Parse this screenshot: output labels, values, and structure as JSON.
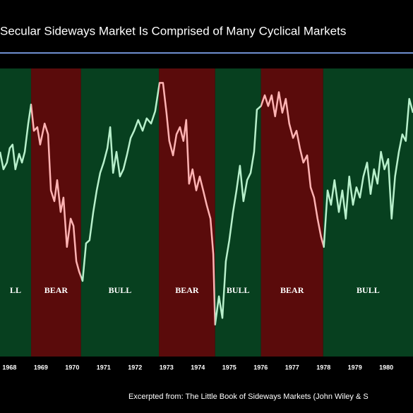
{
  "chart_data": {
    "type": "line",
    "title": "Secular Sideways Market Is Comprised of Many Cyclical Markets",
    "source": "Excerpted from: The Little Book of Sideways Markets (John Wiley & S",
    "x": [
      1967.7,
      1967.81,
      1967.92,
      1968.01,
      1968.1,
      1968.19,
      1968.31,
      1968.4,
      1968.49,
      1968.6,
      1968.69,
      1968.78,
      1968.89,
      1968.98,
      1969.12,
      1969.23,
      1969.32,
      1969.43,
      1969.52,
      1969.63,
      1969.72,
      1969.83,
      1969.95,
      1970.04,
      1970.13,
      1970.22,
      1970.33,
      1970.44,
      1970.55,
      1970.67,
      1970.78,
      1970.89,
      1971.0,
      1971.12,
      1971.21,
      1971.3,
      1971.41,
      1971.52,
      1971.63,
      1971.74,
      1971.86,
      1971.97,
      1972.1,
      1972.24,
      1972.37,
      1972.51,
      1972.64,
      1972.78,
      1972.89,
      1973.0,
      1973.09,
      1973.21,
      1973.32,
      1973.43,
      1973.54,
      1973.63,
      1973.72,
      1973.83,
      1973.95,
      1974.06,
      1974.17,
      1974.28,
      1974.4,
      1974.49,
      1974.55,
      1974.67,
      1974.78,
      1974.89,
      1975.0,
      1975.12,
      1975.23,
      1975.34,
      1975.45,
      1975.57,
      1975.68,
      1975.79,
      1975.88,
      1976.01,
      1976.13,
      1976.24,
      1976.35,
      1976.46,
      1976.58,
      1976.69,
      1976.8,
      1976.91,
      1977.03,
      1977.14,
      1977.25,
      1977.36,
      1977.48,
      1977.59,
      1977.7,
      1977.81,
      1977.92,
      1978.01,
      1978.13,
      1978.24,
      1978.35,
      1978.49,
      1978.6,
      1978.71,
      1978.82,
      1978.94,
      1979.05,
      1979.16,
      1979.27,
      1979.39,
      1979.5,
      1979.61,
      1979.72,
      1979.83,
      1979.94,
      1980.06,
      1980.17,
      1980.28,
      1980.4,
      1980.51,
      1980.62,
      1980.73,
      1980.85
    ],
    "values": [
      918,
      884,
      897,
      925,
      932,
      884,
      914,
      897,
      918,
      973,
      1010,
      959,
      966,
      932,
      973,
      952,
      843,
      822,
      863,
      801,
      829,
      733,
      788,
      774,
      705,
      685,
      667,
      740,
      746,
      801,
      843,
      877,
      897,
      925,
      966,
      877,
      918,
      870,
      884,
      911,
      945,
      959,
      980,
      959,
      983,
      973,
      997,
      1052,
      1052,
      994,
      939,
      911,
      952,
      966,
      939,
      980,
      856,
      884,
      843,
      870,
      843,
      815,
      788,
      719,
      582,
      637,
      595,
      705,
      746,
      801,
      843,
      891,
      822,
      863,
      877,
      918,
      1000,
      1007,
      1028,
      1007,
      1028,
      987,
      1034,
      994,
      1021,
      973,
      945,
      959,
      925,
      897,
      911,
      849,
      829,
      788,
      753,
      733,
      843,
      815,
      863,
      801,
      843,
      788,
      870,
      815,
      849,
      829,
      870,
      897,
      836,
      884,
      856,
      918,
      884,
      904,
      788,
      870,
      918,
      952,
      939,
      1021,
      994
    ],
    "regimes": [
      {
        "label": "LL",
        "start": 1967.7,
        "end": 1968.69,
        "color": "#07401f",
        "line_color": "#b8f0cc"
      },
      {
        "label": "BEAR",
        "start": 1968.69,
        "end": 1970.28,
        "color": "#5a0b0b",
        "line_color": "#ffb3b3"
      },
      {
        "label": "BULL",
        "start": 1970.28,
        "end": 1972.76,
        "color": "#07401f",
        "line_color": "#b8f0cc"
      },
      {
        "label": "BEAR",
        "start": 1972.76,
        "end": 1974.55,
        "color": "#5a0b0b",
        "line_color": "#ffb3b3"
      },
      {
        "label": "BULL",
        "start": 1974.55,
        "end": 1976.01,
        "color": "#07401f",
        "line_color": "#b8f0cc"
      },
      {
        "label": "BEAR",
        "start": 1976.01,
        "end": 1977.99,
        "color": "#5a0b0b",
        "line_color": "#ffb3b3"
      },
      {
        "label": "BULL",
        "start": 1977.99,
        "end": 1980.85,
        "color": "#07401f",
        "line_color": "#b8f0cc"
      }
    ],
    "xlim": [
      1967.7,
      1980.85
    ],
    "xticks": [
      1968,
      1969,
      1970,
      1971,
      1972,
      1973,
      1974,
      1975,
      1976,
      1977,
      1978,
      1979,
      1980
    ],
    "ylim": [
      520,
      1080
    ]
  }
}
